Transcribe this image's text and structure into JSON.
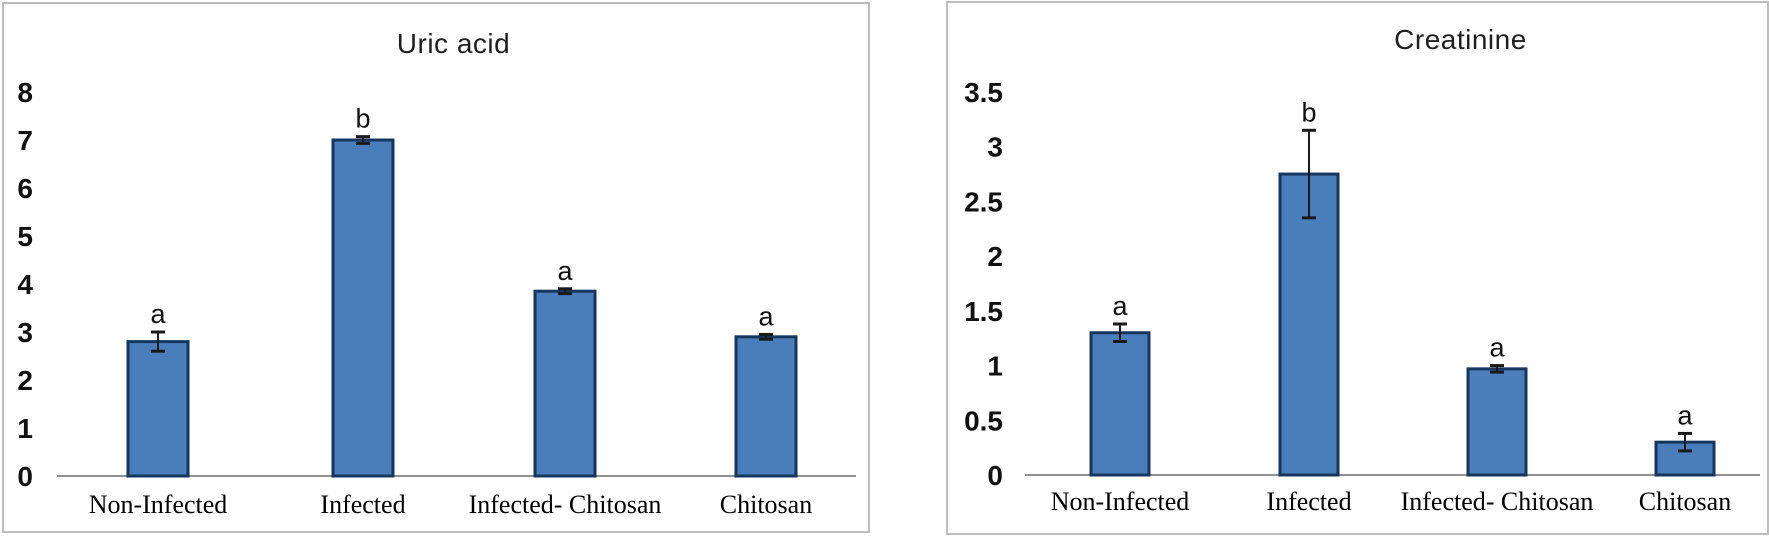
{
  "colors": {
    "bar_fill": "#4a7ebb",
    "bar_border": "#17365d",
    "error_bar": "#1a1a1a",
    "axis_line": "#919191",
    "panel_border": "#bdbdbd",
    "title_text": "#1f1f1f",
    "tick_text": "#111111",
    "category_text": "#000000",
    "sig_label_text": "#111111",
    "background": "#ffffff"
  },
  "chart_data": [
    {
      "type": "bar",
      "title": "Uric acid",
      "categories": [
        "Non-Infected",
        "Infected",
        "Infected- Chitosan",
        "Chitosan"
      ],
      "values": [
        2.8,
        7.0,
        3.85,
        2.9
      ],
      "error_bars": [
        0.2,
        0.07,
        0.05,
        0.05
      ],
      "bar_labels": [
        "a",
        "b",
        "a",
        "a"
      ],
      "xlabel": "",
      "ylabel": "",
      "ylim": [
        0,
        8
      ],
      "y_tick_step": 1,
      "y_tick_labels": [
        "0",
        "1",
        "2",
        "3",
        "4",
        "5",
        "6",
        "7",
        "8"
      ],
      "grid": false,
      "legend": false
    },
    {
      "type": "bar",
      "title": "Creatinine",
      "categories": [
        "Non-Infected",
        "Infected",
        "Infected- Chitosan",
        "Chitosan"
      ],
      "values": [
        1.3,
        2.75,
        0.97,
        0.3
      ],
      "error_bars": [
        0.08,
        0.4,
        0.03,
        0.08
      ],
      "bar_labels": [
        "a",
        "b",
        "a",
        "a"
      ],
      "xlabel": "",
      "ylabel": "",
      "ylim": [
        0,
        3.5
      ],
      "y_tick_step": 0.5,
      "y_tick_labels": [
        "0",
        "0.5",
        "1",
        "1.5",
        "2",
        "2.5",
        "3",
        "3.5"
      ],
      "grid": false,
      "legend": false
    }
  ]
}
